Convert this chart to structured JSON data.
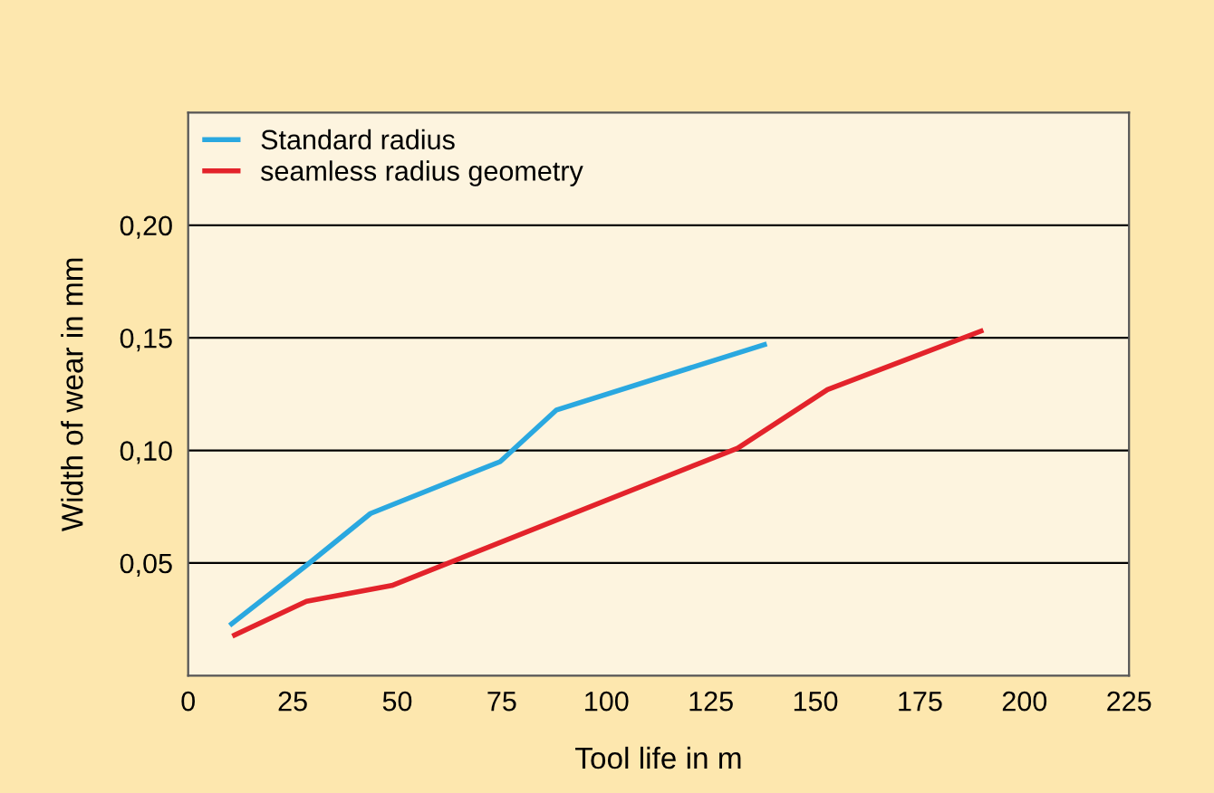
{
  "chart_data": {
    "type": "line",
    "xlabel": "Tool life in m",
    "ylabel": "Width of wear in mm",
    "series": [
      {
        "name": "Standard radius",
        "color": "#2aa8e0",
        "x": [
          10.4,
          28.3,
          43.6,
          74.6,
          88.1,
          137.8
        ],
        "values": [
          0.023,
          0.049,
          0.072,
          0.095,
          0.118,
          0.147
        ]
      },
      {
        "name": "seamless radius geometry",
        "color": "#e3232b",
        "x": [
          11.1,
          28.3,
          48.7,
          131.4,
          152.9,
          189.6
        ],
        "values": [
          0.018,
          0.033,
          0.04,
          0.101,
          0.127,
          0.153
        ]
      }
    ],
    "xlim": [
      0,
      225
    ],
    "xticks": [
      0,
      25,
      50,
      75,
      100,
      125,
      150,
      175,
      200,
      225
    ],
    "ylim": [
      0,
      0.25
    ],
    "yticks": [
      {
        "value": 0.05,
        "label": "0,05"
      },
      {
        "value": 0.1,
        "label": "0,10"
      },
      {
        "value": 0.15,
        "label": "0,15"
      },
      {
        "value": 0.2,
        "label": "0,20"
      }
    ],
    "grid": "y",
    "legend": "top left",
    "marker": "none",
    "line_style": "solid"
  }
}
